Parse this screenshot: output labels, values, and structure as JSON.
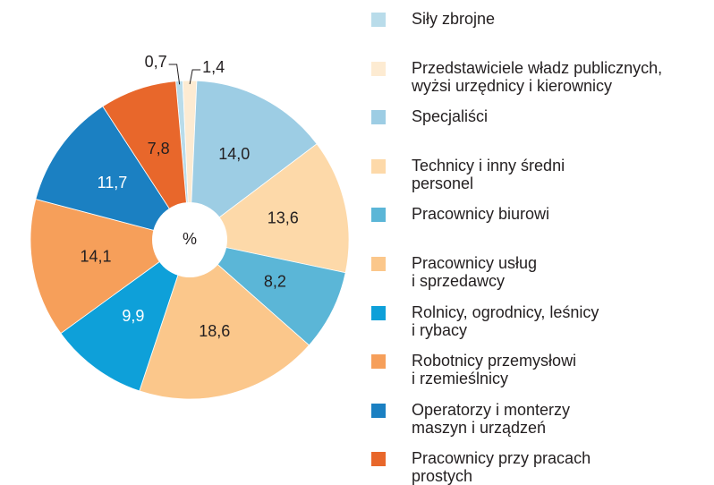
{
  "chart_data": {
    "type": "pie",
    "center_label": "%",
    "series": [
      {
        "name": "Siły zbrojne",
        "color": "#b9dcea",
        "values": [
          0.7
        ],
        "value_labels": [
          "0,7"
        ]
      },
      {
        "name": "Przedstawiciele władz publicznych,\nwyżsi urzędnicy i kierownicy",
        "color": "#fdebd2",
        "values": [
          1.4
        ],
        "value_labels": [
          "1,4"
        ]
      },
      {
        "name": "Specjaliści",
        "color": "#9dcde4",
        "values": [
          14.0
        ],
        "value_labels": [
          "14,0"
        ]
      },
      {
        "name": "Technicy i inny średni\npersonel",
        "color": "#fdd9a9",
        "values": [
          13.6
        ],
        "value_labels": [
          "13,6"
        ]
      },
      {
        "name": "Pracownicy biurowi",
        "color": "#5bb6d7",
        "values": [
          8.2
        ],
        "value_labels": [
          "8,2"
        ]
      },
      {
        "name": "Pracownicy usług\ni sprzedawcy",
        "color": "#fbc78b",
        "values": [
          18.6
        ],
        "value_labels": [
          "18,6"
        ]
      },
      {
        "name": "Rolnicy, ogrodnicy, leśnicy\ni rybacy",
        "color": "#0ea0d9",
        "values": [
          9.9
        ],
        "value_labels": [
          "9,9"
        ]
      },
      {
        "name": "Robotnicy przemysłowi\ni rzemieślnicy",
        "color": "#f69f5a",
        "values": [
          14.1
        ],
        "value_labels": [
          "14,1"
        ]
      },
      {
        "name": "Operatorzy i monterzy\nmaszyn i urządzeń",
        "color": "#1b80c2",
        "values": [
          11.7
        ],
        "value_labels": [
          "11,7"
        ]
      },
      {
        "name": "Pracownicy przy pracach\nprostych",
        "color": "#e8672b",
        "values": [
          7.8
        ],
        "value_labels": [
          "7,8"
        ]
      }
    ]
  }
}
